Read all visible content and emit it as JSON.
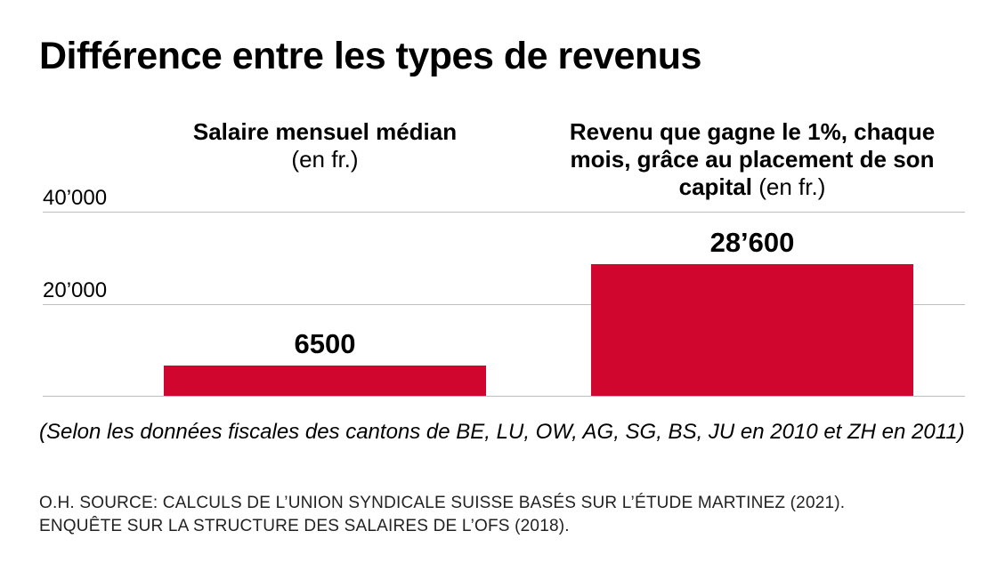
{
  "title": "Différence entre les types de revenus",
  "chart_data": {
    "type": "bar",
    "title": "Différence entre les types de revenus",
    "categories": [
      {
        "label_bold": "Salaire mensuel médian",
        "label_rest": "(en fr.)"
      },
      {
        "label_bold": "Revenu que gagne le 1%, chaque mois, grâce au placement de son capital",
        "label_rest": "(en fr.)"
      }
    ],
    "values": [
      6500,
      28600
    ],
    "value_labels": [
      "6500",
      "28’600"
    ],
    "ylim": [
      0,
      40000
    ],
    "y_ticks": [
      {
        "value": 20000,
        "label": "20’000"
      },
      {
        "value": 40000,
        "label": "40’000"
      }
    ],
    "xlabel": "",
    "ylabel": "",
    "grid": true,
    "bar_color": "#d0062f",
    "grid_color": "#bdbdbd"
  },
  "note": "(Selon les données fiscales des cantons de BE, LU, OW, AG, SG, BS, JU en 2010 et ZH en 2011)",
  "source_lines": [
    "O.H. SOURCE: CALCULS DE L’UNION SYNDICALE SUISSE BASÉS SUR L’ÉTUDE MARTINEZ (2021).",
    "ENQUÊTE SUR LA STRUCTURE DES SALAIRES DE L’OFS (2018)."
  ]
}
